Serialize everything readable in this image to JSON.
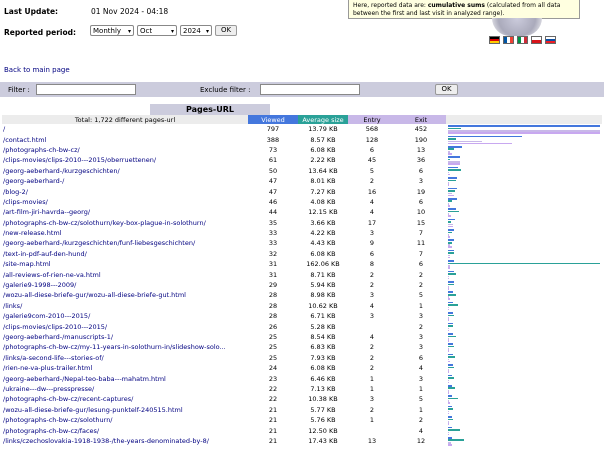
{
  "last_update": {
    "label": "Last Update:",
    "value": "01 Nov 2024 - 04:18"
  },
  "reported_period": {
    "label": "Reported period:",
    "period_select": "Monthly",
    "month_select": "Oct",
    "year_select": "2024",
    "ok_label": "OK"
  },
  "notice": {
    "text_before": "Here, reported data are: ",
    "text_bold": "cumulative sums",
    "text_after": " (calculated from all data between the first and last visit in analyzed range)."
  },
  "flags": [
    "de-flag-icon",
    "fr-flag-icon",
    "it-flag-icon",
    "cz-flag-icon",
    "sk-flag-icon"
  ],
  "back_link": "Back to main page",
  "filters": {
    "filter_label": "Filter :",
    "exclude_label": "Exclude filter :",
    "ok_label": "OK"
  },
  "section_title": "Pages-URL",
  "headers": {
    "total": "Total: 1,722 different pages-url",
    "viewed": "Viewed",
    "size": "Average size",
    "entry": "Entry",
    "exit": "Exit"
  },
  "colors": {
    "viewed": "#4477dd",
    "size": "#2aa198",
    "entry": "#c8b8e8",
    "exit": "#c8a8f0",
    "link": "#000080"
  },
  "max": {
    "viewed": 797,
    "size_kb": 162.06,
    "entry": 568,
    "exit": 452
  },
  "rows": [
    {
      "url": "/",
      "viewed": "797",
      "size": "13.79 KB",
      "entry": "568",
      "exit": "452"
    },
    {
      "url": "/contact.html",
      "viewed": "388",
      "size": "8.57 KB",
      "entry": "128",
      "exit": "190"
    },
    {
      "url": "/photographs-ch-bw-cz/",
      "viewed": "73",
      "size": "6.08 KB",
      "entry": "6",
      "exit": "13"
    },
    {
      "url": "/clips-movies/clips-2010---2015/oberruettenen/",
      "viewed": "61",
      "size": "2.22 KB",
      "entry": "45",
      "exit": "36"
    },
    {
      "url": "/georg-aeberhard-/kurzgeschichten/",
      "viewed": "50",
      "size": "13.64 KB",
      "entry": "5",
      "exit": "6"
    },
    {
      "url": "/georg-aeberhard-/",
      "viewed": "47",
      "size": "8.01 KB",
      "entry": "2",
      "exit": "3"
    },
    {
      "url": "/blog-2/",
      "viewed": "47",
      "size": "7.27 KB",
      "entry": "16",
      "exit": "19"
    },
    {
      "url": "/clips-movies/",
      "viewed": "46",
      "size": "4.08 KB",
      "entry": "4",
      "exit": "6"
    },
    {
      "url": "/art-film-jiri-havrda--georg/",
      "viewed": "44",
      "size": "12.15 KB",
      "entry": "4",
      "exit": "10"
    },
    {
      "url": "/photographs-ch-bw-cz/solothurn/key-box-plague-in-solothurn/",
      "viewed": "35",
      "size": "3.66 KB",
      "entry": "17",
      "exit": "15"
    },
    {
      "url": "/new-release.html",
      "viewed": "33",
      "size": "4.22 KB",
      "entry": "3",
      "exit": "7"
    },
    {
      "url": "/georg-aeberhard-/kurzgeschichten/funf-liebesgeschichten/",
      "viewed": "33",
      "size": "4.43 KB",
      "entry": "9",
      "exit": "11"
    },
    {
      "url": "/text-in-pdf-auf-den-hund/",
      "viewed": "32",
      "size": "6.08 KB",
      "entry": "6",
      "exit": "7"
    },
    {
      "url": "/site-map.html",
      "viewed": "31",
      "size": "162.06 KB",
      "entry": "8",
      "exit": "6"
    },
    {
      "url": "/all-reviews-of-rien-ne-va.html",
      "viewed": "31",
      "size": "8.71 KB",
      "entry": "2",
      "exit": "2"
    },
    {
      "url": "/galerie9-1998---2009/",
      "viewed": "29",
      "size": "5.94 KB",
      "entry": "2",
      "exit": "2"
    },
    {
      "url": "/wozu-all-diese-briefe-gur/wozu-all-diese-briefe-gut.html",
      "viewed": "28",
      "size": "8.98 KB",
      "entry": "3",
      "exit": "5"
    },
    {
      "url": "/links/",
      "viewed": "28",
      "size": "10.62 KB",
      "entry": "4",
      "exit": "1"
    },
    {
      "url": "/galerie9com-2010---2015/",
      "viewed": "28",
      "size": "6.71 KB",
      "entry": "3",
      "exit": "3"
    },
    {
      "url": "/clips-movies/clips-2010---2015/",
      "viewed": "26",
      "size": "5.28 KB",
      "entry": "",
      "exit": "2"
    },
    {
      "url": "/georg-aeberhard-/manuscripts-1/",
      "viewed": "25",
      "size": "8.54 KB",
      "entry": "4",
      "exit": "3"
    },
    {
      "url": "/photographs-ch-bw-cz/my-11-years-in-solothurn-in/slideshow-solo...",
      "viewed": "25",
      "size": "6.83 KB",
      "entry": "2",
      "exit": "3"
    },
    {
      "url": "/links/a-second-life---stories-of/",
      "viewed": "25",
      "size": "7.93 KB",
      "entry": "2",
      "exit": "6"
    },
    {
      "url": "/rien-ne-va-plus-trailer.html",
      "viewed": "24",
      "size": "6.08 KB",
      "entry": "2",
      "exit": "4"
    },
    {
      "url": "/georg-aeberhard-/Nepal-teo-baba---mahatm.html",
      "viewed": "23",
      "size": "6.46 KB",
      "entry": "1",
      "exit": "3"
    },
    {
      "url": "/ukraine---dw---presspresse/",
      "viewed": "22",
      "size": "7.13 KB",
      "entry": "1",
      "exit": "1"
    },
    {
      "url": "/photographs-ch-bw-cz/recent-captures/",
      "viewed": "22",
      "size": "10.38 KB",
      "entry": "3",
      "exit": "5"
    },
    {
      "url": "/wozu-all-diese-briefe-gur/lesung-punktelf-240515.html",
      "viewed": "21",
      "size": "5.77 KB",
      "entry": "2",
      "exit": "1"
    },
    {
      "url": "/photographs-ch-bw-cz/solothurn/",
      "viewed": "21",
      "size": "5.76 KB",
      "entry": "1",
      "exit": "2"
    },
    {
      "url": "/photographs-ch-bw-cz/faces/",
      "viewed": "21",
      "size": "12.50 KB",
      "entry": "",
      "exit": "4"
    },
    {
      "url": "/links/czechoslovakia-1918-1938-/the-years-denominated-by-8/",
      "viewed": "21",
      "size": "17.43 KB",
      "entry": "13",
      "exit": "12"
    }
  ]
}
